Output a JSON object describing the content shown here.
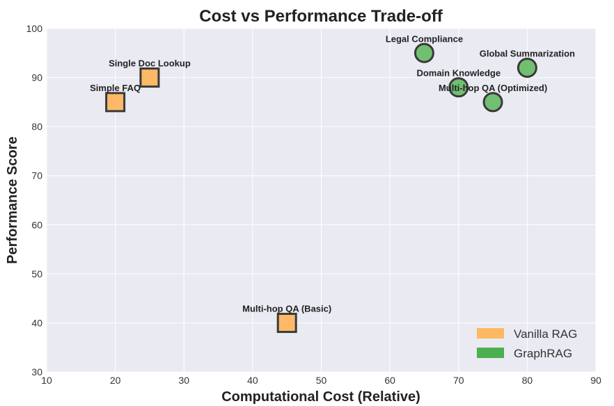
{
  "chart_data": {
    "type": "scatter",
    "title": "Cost vs Performance Trade-off",
    "xlabel": "Computational Cost (Relative)",
    "ylabel": "Performance Score",
    "xlim": [
      10,
      90
    ],
    "ylim": [
      30,
      100
    ],
    "xticks": [
      10,
      20,
      30,
      40,
      50,
      60,
      70,
      80,
      90
    ],
    "yticks": [
      30,
      40,
      50,
      60,
      70,
      80,
      90,
      100
    ],
    "xtick_labels": [
      "10",
      "20",
      "30",
      "40",
      "50",
      "60",
      "70",
      "80",
      "90"
    ],
    "ytick_labels": [
      "30",
      "40",
      "50",
      "60",
      "70",
      "80",
      "90",
      "100"
    ],
    "grid": true,
    "legend_position": "bottom-right",
    "series": [
      {
        "name": "Vanilla RAG",
        "marker": "square",
        "color": "#fdb967",
        "legend_color": "#fdb862",
        "points": [
          {
            "label": "Simple FAQ",
            "x": 20,
            "y": 85
          },
          {
            "label": "Single Doc Lookup",
            "x": 25,
            "y": 90
          },
          {
            "label": "Multi-hop QA (Basic)",
            "x": 45,
            "y": 40
          }
        ]
      },
      {
        "name": "GraphRAG",
        "marker": "circle",
        "color": "#71bf71",
        "legend_color": "#4caf50",
        "points": [
          {
            "label": "Legal Compliance",
            "x": 65,
            "y": 95
          },
          {
            "label": "Domain Knowledge",
            "x": 70,
            "y": 88
          },
          {
            "label": "Multi-hop QA (Optimized)",
            "x": 75,
            "y": 85
          },
          {
            "label": "Global Summarization",
            "x": 80,
            "y": 92
          }
        ]
      }
    ]
  }
}
